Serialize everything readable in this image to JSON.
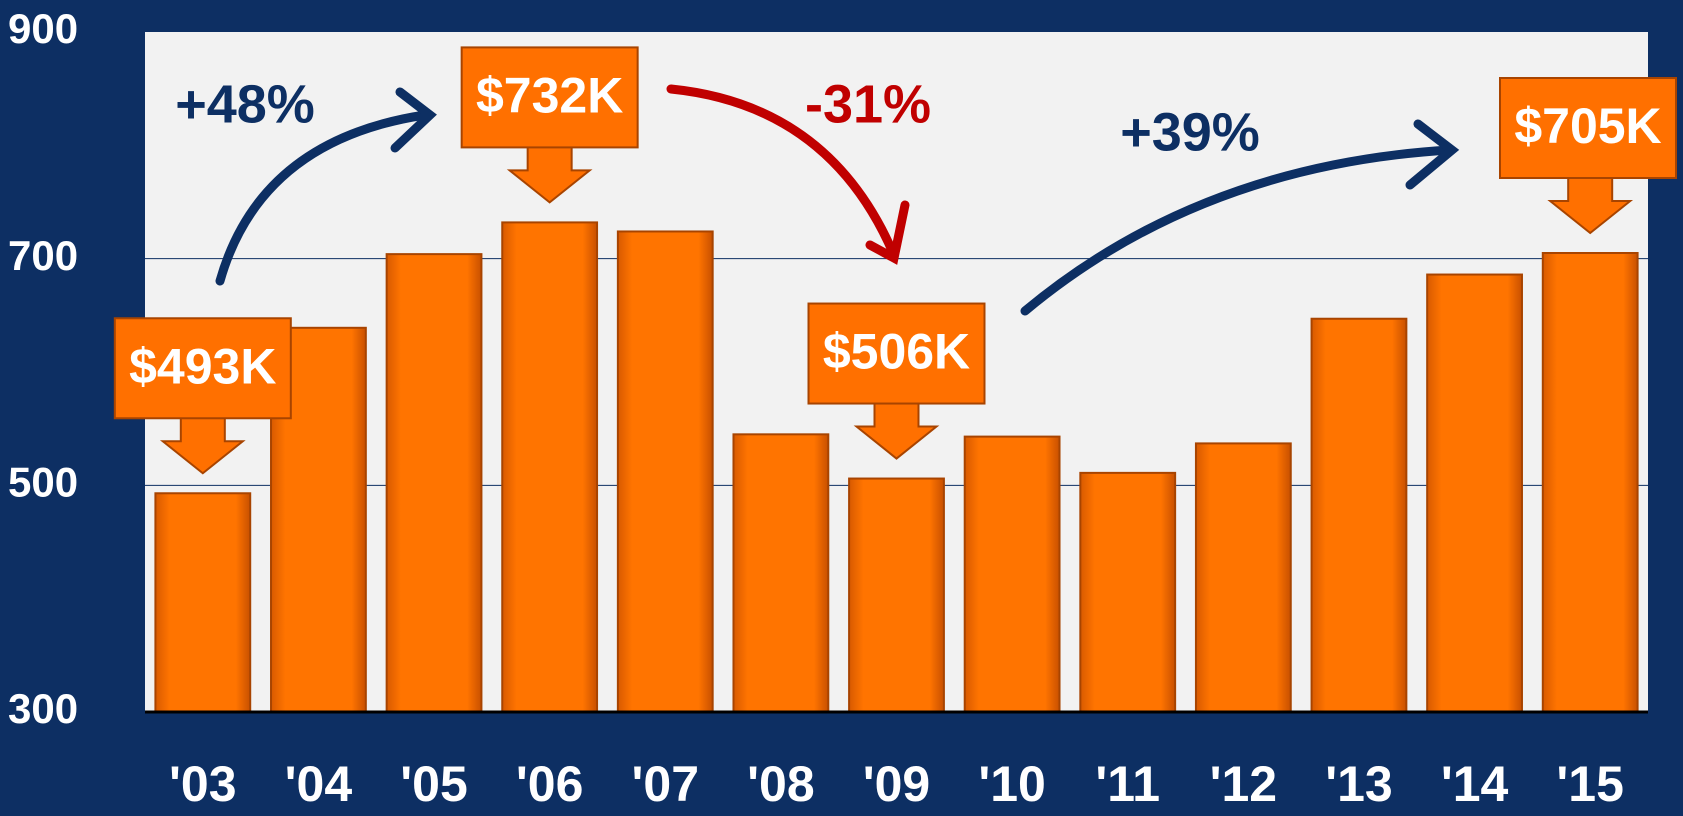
{
  "chart_data": {
    "type": "bar",
    "categories": [
      "'03",
      "'04",
      "'05",
      "'06",
      "'07",
      "'08",
      "'09",
      "'10",
      "'11",
      "'12",
      "'13",
      "'14",
      "'15"
    ],
    "values": [
      493,
      639,
      704,
      732,
      724,
      545,
      506,
      543,
      511,
      537,
      647,
      686,
      705
    ],
    "value_labels": [
      "$493K",
      null,
      null,
      "$732K",
      null,
      null,
      "$506K",
      null,
      null,
      null,
      null,
      null,
      "$705K"
    ],
    "color": "#ff7000",
    "ylim": [
      300,
      900
    ],
    "yticks": [
      300,
      500,
      700,
      900
    ],
    "grid": true,
    "annotations": [
      {
        "text": "+48%",
        "color": "#0d2f63"
      },
      {
        "text": "-31%",
        "color": "#c00000"
      },
      {
        "text": "+39%",
        "color": "#0d2f63"
      }
    ]
  }
}
